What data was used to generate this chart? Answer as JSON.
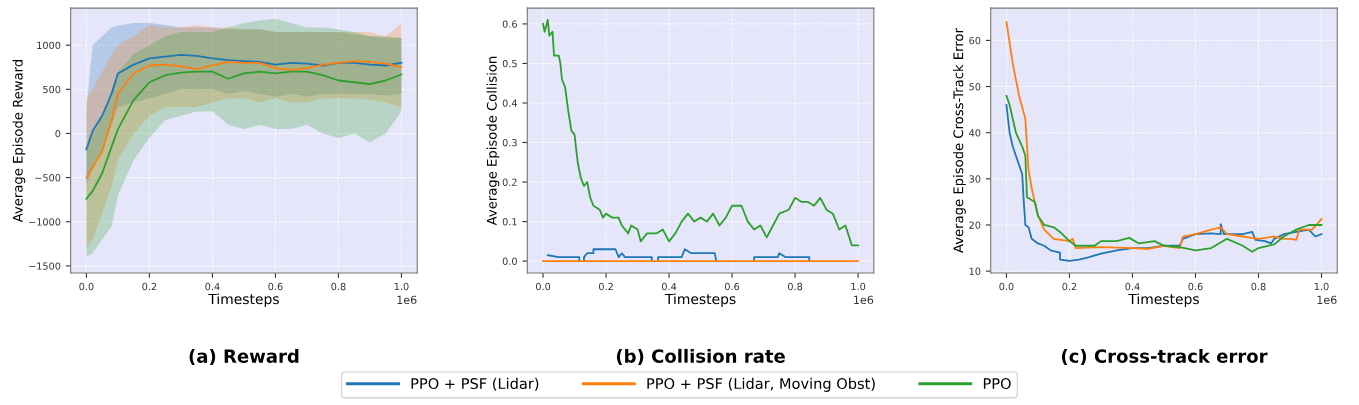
{
  "chart_data": [
    {
      "type": "line",
      "title": "(a) Reward",
      "xlabel": "Timesteps",
      "ylabel": "Average Episode Reward",
      "annotations": [
        "1e6"
      ],
      "x": [
        0,
        0.02,
        0.05,
        0.08,
        0.1,
        0.15,
        0.2,
        0.25,
        0.3,
        0.35,
        0.4,
        0.45,
        0.5,
        0.55,
        0.6,
        0.65,
        0.7,
        0.75,
        0.8,
        0.85,
        0.9,
        0.95,
        1.0
      ],
      "series": [
        {
          "name": "PPO + PSF (Lidar)",
          "color": "#1f77b4",
          "values": [
            -180,
            30,
            200,
            450,
            680,
            780,
            850,
            870,
            890,
            880,
            850,
            830,
            820,
            810,
            780,
            800,
            790,
            770,
            800,
            800,
            780,
            770,
            800
          ],
          "upper": [
            300,
            1000,
            1100,
            1200,
            1220,
            1250,
            1250,
            1230,
            1200,
            1200,
            1200,
            1180,
            1180,
            1180,
            1150,
            1150,
            1150,
            1150,
            1150,
            1120,
            1100,
            1080,
            1080
          ],
          "lower": [
            -600,
            -400,
            -200,
            100,
            300,
            350,
            400,
            450,
            500,
            500,
            500,
            450,
            480,
            450,
            420,
            450,
            420,
            450,
            450,
            450,
            450,
            430,
            450
          ]
        },
        {
          "name": "PPO + PSF (Lidar, Moving Obst)",
          "color": "#ff7f0e",
          "values": [
            -500,
            -380,
            -200,
            150,
            450,
            680,
            770,
            780,
            760,
            730,
            770,
            810,
            800,
            800,
            740,
            720,
            740,
            780,
            800,
            820,
            810,
            790,
            750
          ],
          "upper": [
            400,
            500,
            700,
            900,
            1000,
            1100,
            1230,
            1200,
            1200,
            1230,
            1200,
            1200,
            1180,
            1180,
            1150,
            1150,
            1150,
            1150,
            1150,
            1150,
            1150,
            1100,
            1250
          ],
          "lower": [
            -1300,
            -1200,
            -900,
            -600,
            -300,
            0,
            200,
            300,
            300,
            300,
            350,
            400,
            400,
            350,
            400,
            350,
            350,
            400,
            400,
            400,
            380,
            350,
            300
          ]
        },
        {
          "name": "PPO",
          "color": "#2ca02c",
          "values": [
            -740,
            -650,
            -450,
            -150,
            50,
            380,
            580,
            660,
            690,
            700,
            700,
            620,
            680,
            700,
            680,
            700,
            700,
            660,
            600,
            580,
            560,
            600,
            670
          ],
          "upper": [
            -200,
            0,
            200,
            500,
            700,
            900,
            1000,
            1100,
            1150,
            1150,
            1150,
            1200,
            1250,
            1280,
            1300,
            1250,
            1200,
            1200,
            1180,
            1150,
            1100,
            1100,
            1080
          ],
          "lower": [
            -1400,
            -1350,
            -1200,
            -1050,
            -700,
            -300,
            -50,
            150,
            200,
            250,
            250,
            100,
            50,
            100,
            50,
            50,
            100,
            0,
            -50,
            0,
            -100,
            0,
            250
          ]
        }
      ],
      "xlim": [
        -0.05,
        1.05
      ],
      "xticks": [
        {
          "value": 0,
          "label": "0.0"
        },
        {
          "value": 0.2,
          "label": "0.2"
        },
        {
          "value": 0.4,
          "label": "0.4"
        },
        {
          "value": 0.6,
          "label": "0.6"
        },
        {
          "value": 0.8,
          "label": "0.8"
        },
        {
          "value": 1.0,
          "label": "1.0"
        }
      ],
      "ylim": [
        -1580,
        1420
      ],
      "yticks": [
        {
          "value": -1500,
          "label": "−1500"
        },
        {
          "value": -1000,
          "label": "−1000"
        },
        {
          "value": -500,
          "label": "−500"
        },
        0,
        500,
        1000
      ],
      "grid": true,
      "legend": "bottom"
    },
    {
      "type": "line",
      "title": "(b) Collision rate",
      "xlabel": "Timesteps",
      "ylabel": "Average Episode Collision",
      "annotations": [
        "1e6"
      ],
      "series": [
        {
          "name": "PPO + PSF (Lidar)",
          "color": "#1f77b4",
          "x": [
            0.015,
            0.05,
            0.115,
            0.115,
            0.12,
            0.13,
            0.13,
            0.14,
            0.16,
            0.16,
            0.23,
            0.24,
            0.25,
            0.26,
            0.345,
            0.345,
            0.355,
            0.365,
            0.365,
            0.44,
            0.45,
            0.47,
            0.545,
            0.55,
            0.6,
            0.67,
            0.67,
            0.745,
            0.75,
            0.77,
            0.845,
            0.845
          ],
          "values": [
            0.015,
            0.01,
            0.01,
            0,
            null,
            0,
            0.01,
            0.02,
            0.02,
            0.03,
            0.03,
            0.01,
            0.02,
            0.01,
            0.01,
            0,
            null,
            0,
            0.01,
            0.01,
            0.03,
            0.02,
            0.02,
            0,
            null,
            0,
            0.01,
            0.01,
            0.02,
            0.01,
            0.01,
            0
          ]
        },
        {
          "name": "PPO + PSF (Lidar, Moving Obst)",
          "color": "#ff7f0e",
          "x": [
            0,
            1.0
          ],
          "values": [
            0,
            0
          ]
        },
        {
          "name": "PPO",
          "color": "#2ca02c",
          "x": [
            0,
            0.005,
            0.015,
            0.02,
            0.03,
            0.035,
            0.05,
            0.055,
            0.06,
            0.07,
            0.08,
            0.09,
            0.1,
            0.11,
            0.12,
            0.13,
            0.14,
            0.15,
            0.16,
            0.18,
            0.19,
            0.2,
            0.22,
            0.24,
            0.25,
            0.27,
            0.28,
            0.3,
            0.31,
            0.33,
            0.36,
            0.38,
            0.4,
            0.42,
            0.44,
            0.46,
            0.48,
            0.5,
            0.52,
            0.54,
            0.56,
            0.58,
            0.6,
            0.63,
            0.65,
            0.67,
            0.69,
            0.71,
            0.73,
            0.75,
            0.78,
            0.8,
            0.82,
            0.84,
            0.86,
            0.88,
            0.9,
            0.92,
            0.94,
            0.96,
            0.98,
            1.0
          ],
          "values": [
            0.6,
            0.58,
            0.61,
            0.57,
            0.58,
            0.52,
            0.52,
            0.5,
            0.46,
            0.44,
            0.38,
            0.33,
            0.32,
            0.25,
            0.21,
            0.19,
            0.2,
            0.16,
            0.14,
            0.13,
            0.11,
            0.12,
            0.11,
            0.11,
            0.09,
            0.07,
            0.09,
            0.08,
            0.05,
            0.07,
            0.07,
            0.08,
            0.05,
            0.07,
            0.1,
            0.12,
            0.1,
            0.11,
            0.1,
            0.12,
            0.09,
            0.11,
            0.14,
            0.14,
            0.1,
            0.08,
            0.09,
            0.06,
            0.09,
            0.12,
            0.13,
            0.16,
            0.15,
            0.15,
            0.14,
            0.16,
            0.13,
            0.12,
            0.08,
            0.09,
            0.04,
            0.04
          ]
        }
      ],
      "xlim": [
        -0.05,
        1.05
      ],
      "xticks": [
        {
          "value": 0,
          "label": "0.0"
        },
        {
          "value": 0.2,
          "label": "0.2"
        },
        {
          "value": 0.4,
          "label": "0.4"
        },
        {
          "value": 0.6,
          "label": "0.6"
        },
        {
          "value": 0.8,
          "label": "0.8"
        },
        {
          "value": 1.0,
          "label": "1.0"
        }
      ],
      "ylim": [
        -0.03,
        0.64
      ],
      "yticks": [
        {
          "value": 0,
          "label": "0.0"
        },
        0.1,
        0.2,
        0.3,
        0.4,
        0.5,
        0.6
      ],
      "grid": true,
      "legend": "bottom"
    },
    {
      "type": "line",
      "title": "(c) Cross-track error",
      "xlabel": "Timesteps",
      "ylabel": "Average Episode Cross-Track Error",
      "annotations": [
        "1e6"
      ],
      "series": [
        {
          "name": "PPO + PSF (Lidar)",
          "color": "#1f77b4",
          "x": [
            0,
            0.01,
            0.02,
            0.03,
            0.05,
            0.055,
            0.06,
            0.07,
            0.08,
            0.1,
            0.12,
            0.14,
            0.17,
            0.17,
            0.2,
            0.23,
            0.26,
            0.3,
            0.35,
            0.4,
            0.45,
            0.5,
            0.55,
            0.56,
            0.6,
            0.65,
            0.68,
            0.68,
            0.69,
            0.75,
            0.78,
            0.79,
            0.82,
            0.84,
            0.85,
            0.88,
            0.92,
            0.96,
            0.98,
            1.0
          ],
          "values": [
            46,
            40,
            37,
            35,
            31,
            25,
            20,
            19.5,
            17,
            16,
            15.5,
            14.5,
            14,
            12.5,
            12.2,
            12.5,
            13,
            13.8,
            14.5,
            15,
            15,
            15.5,
            15.5,
            17,
            18,
            18.2,
            18,
            20.2,
            18,
            18,
            18.5,
            16.8,
            16.5,
            16,
            17,
            18,
            18.5,
            19,
            17.5,
            18
          ]
        },
        {
          "name": "PPO + PSF (Lidar, Moving Obst)",
          "color": "#ff7f0e",
          "x": [
            0,
            0.02,
            0.04,
            0.06,
            0.07,
            0.08,
            0.1,
            0.12,
            0.15,
            0.2,
            0.21,
            0.22,
            0.3,
            0.4,
            0.45,
            0.5,
            0.55,
            0.56,
            0.6,
            0.65,
            0.68,
            0.7,
            0.75,
            0.8,
            0.85,
            0.88,
            0.9,
            0.92,
            0.93,
            0.97,
            1.0
          ],
          "values": [
            64,
            55,
            48,
            43,
            32,
            28,
            22,
            19,
            17,
            16.5,
            17,
            15,
            15.2,
            15,
            14.8,
            15.5,
            15,
            17.5,
            18,
            19,
            19.5,
            18,
            17.5,
            17,
            17.5,
            17,
            17,
            16.8,
            19,
            19,
            21.3
          ]
        },
        {
          "name": "PPO",
          "color": "#2ca02c",
          "x": [
            0,
            0.01,
            0.03,
            0.05,
            0.06,
            0.065,
            0.09,
            0.1,
            0.12,
            0.15,
            0.17,
            0.2,
            0.22,
            0.28,
            0.3,
            0.35,
            0.39,
            0.42,
            0.47,
            0.5,
            0.55,
            0.6,
            0.65,
            0.7,
            0.75,
            0.78,
            0.8,
            0.85,
            0.88,
            0.92,
            0.96,
            1.0
          ],
          "values": [
            48,
            46,
            40,
            37,
            35,
            26,
            25,
            22,
            20,
            19.5,
            18.5,
            16.5,
            15.5,
            15.5,
            16.5,
            16.5,
            17.2,
            16,
            16.5,
            15.5,
            15.2,
            14.5,
            15,
            17,
            15.5,
            14.2,
            15,
            15.8,
            17.5,
            19,
            20,
            20
          ]
        }
      ],
      "xlim": [
        -0.05,
        1.05
      ],
      "xticks": [
        {
          "value": 0,
          "label": "0.0"
        },
        {
          "value": 0.2,
          "label": "0.2"
        },
        {
          "value": 0.4,
          "label": "0.4"
        },
        {
          "value": 0.6,
          "label": "0.6"
        },
        {
          "value": 0.8,
          "label": "0.8"
        },
        {
          "value": 1.0,
          "label": "1.0"
        }
      ],
      "ylim": [
        9.6,
        67
      ],
      "yticks": [
        10,
        20,
        30,
        40,
        50,
        60
      ],
      "grid": true,
      "legend": "bottom"
    }
  ]
}
